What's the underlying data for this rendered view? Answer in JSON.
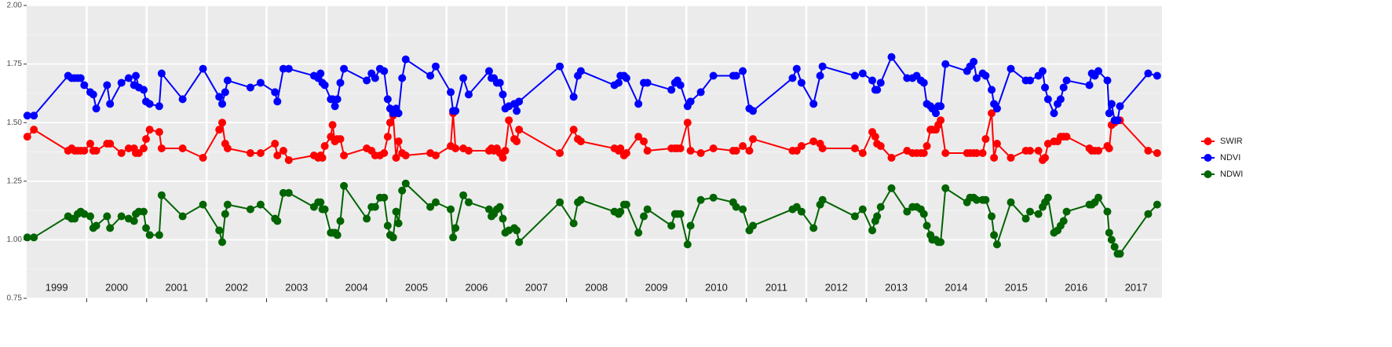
{
  "chart_data": {
    "type": "line",
    "categories": [
      "1999",
      "2000",
      "2001",
      "2002",
      "2003",
      "2004",
      "2005",
      "2006",
      "2007",
      "2008",
      "2009",
      "2010",
      "2011",
      "2012",
      "2013",
      "2014",
      "2015",
      "2016",
      "2017"
    ],
    "x": [
      1999.01,
      1999.12,
      1999.69,
      1999.75,
      1999.8,
      1999.85,
      1999.9,
      1999.96,
      2000.06,
      2000.11,
      2000.16,
      2000.34,
      2000.39,
      2000.58,
      2000.7,
      2000.79,
      2000.82,
      2000.87,
      2000.95,
      2000.99,
      2001.05,
      2001.21,
      2001.25,
      2001.6,
      2001.94,
      2002.21,
      2002.26,
      2002.31,
      2002.35,
      2002.73,
      2002.9,
      2003.14,
      2003.18,
      2003.28,
      2003.37,
      2003.79,
      2003.86,
      2003.9,
      2003.93,
      2003.97,
      2004.07,
      2004.1,
      2004.14,
      2004.18,
      2004.23,
      2004.29,
      2004.67,
      2004.75,
      2004.81,
      2004.89,
      2004.96,
      2005.02,
      2005.06,
      2005.11,
      2005.16,
      2005.2,
      2005.26,
      2005.32,
      2005.73,
      2005.82,
      2006.07,
      2006.11,
      2006.15,
      2006.28,
      2006.37,
      2006.71,
      2006.75,
      2006.79,
      2006.84,
      2006.89,
      2006.94,
      2006.98,
      2007.04,
      2007.13,
      2007.17,
      2007.21,
      2007.89,
      2008.12,
      2008.19,
      2008.24,
      2008.8,
      2008.87,
      2008.9,
      2008.96,
      2009.0,
      2009.2,
      2009.29,
      2009.35,
      2009.75,
      2009.81,
      2009.85,
      2009.9,
      2010.02,
      2010.07,
      2010.24,
      2010.45,
      2010.78,
      2010.83,
      2010.94,
      2011.05,
      2011.11,
      2011.77,
      2011.84,
      2011.92,
      2012.12,
      2012.23,
      2012.27,
      2012.81,
      2012.94,
      2013.1,
      2013.15,
      2013.18,
      2013.24,
      2013.42,
      2013.68,
      2013.77,
      2013.84,
      2013.91,
      2013.96,
      2014.01,
      2014.07,
      2014.1,
      2014.16,
      2014.2,
      2014.24,
      2014.32,
      2014.68,
      2014.73,
      2014.79,
      2014.84,
      2014.94,
      2014.99,
      2015.09,
      2015.13,
      2015.18,
      2015.41,
      2015.66,
      2015.73,
      2015.87,
      2015.94,
      2015.98,
      2016.03,
      2016.13,
      2016.19,
      2016.24,
      2016.29,
      2016.34,
      2016.72,
      2016.76,
      2016.81,
      2016.87,
      2017.02,
      2017.05,
      2017.09,
      2017.14,
      2017.19,
      2017.23,
      2017.7,
      2017.85
    ],
    "series": [
      {
        "name": "SWIR",
        "color": "#ff0000",
        "values": [
          1.44,
          1.47,
          1.38,
          1.39,
          1.38,
          1.38,
          1.38,
          1.38,
          1.41,
          1.38,
          1.38,
          1.41,
          1.41,
          1.37,
          1.39,
          1.39,
          1.37,
          1.37,
          1.39,
          1.43,
          1.47,
          1.46,
          1.39,
          1.39,
          1.35,
          1.47,
          1.5,
          1.41,
          1.39,
          1.37,
          1.37,
          1.41,
          1.36,
          1.38,
          1.34,
          1.36,
          1.35,
          1.36,
          1.35,
          1.4,
          1.44,
          1.49,
          1.42,
          1.43,
          1.43,
          1.36,
          1.39,
          1.38,
          1.36,
          1.36,
          1.37,
          1.44,
          1.5,
          1.53,
          1.35,
          1.42,
          1.37,
          1.36,
          1.37,
          1.36,
          1.4,
          1.54,
          1.39,
          1.39,
          1.38,
          1.38,
          1.39,
          1.38,
          1.39,
          1.37,
          1.35,
          1.38,
          1.51,
          1.43,
          1.42,
          1.47,
          1.37,
          1.47,
          1.43,
          1.42,
          1.39,
          1.38,
          1.39,
          1.36,
          1.37,
          1.44,
          1.42,
          1.38,
          1.39,
          1.39,
          1.39,
          1.39,
          1.5,
          1.38,
          1.37,
          1.39,
          1.38,
          1.38,
          1.4,
          1.38,
          1.43,
          1.38,
          1.38,
          1.4,
          1.42,
          1.41,
          1.39,
          1.39,
          1.37,
          1.46,
          1.44,
          1.41,
          1.4,
          1.35,
          1.38,
          1.37,
          1.37,
          1.37,
          1.37,
          1.4,
          1.47,
          1.47,
          1.47,
          1.49,
          1.51,
          1.37,
          1.37,
          1.37,
          1.37,
          1.37,
          1.37,
          1.43,
          1.54,
          1.35,
          1.41,
          1.35,
          1.38,
          1.38,
          1.38,
          1.34,
          1.35,
          1.41,
          1.42,
          1.42,
          1.44,
          1.44,
          1.44,
          1.39,
          1.38,
          1.38,
          1.38,
          1.4,
          1.39,
          1.49,
          1.5,
          1.51,
          1.51,
          1.38,
          1.37
        ]
      },
      {
        "name": "NDVI",
        "color": "#0000ff",
        "values": [
          1.53,
          1.53,
          1.7,
          1.69,
          1.69,
          1.69,
          1.69,
          1.66,
          1.63,
          1.62,
          1.56,
          1.66,
          1.58,
          1.67,
          1.69,
          1.66,
          1.7,
          1.65,
          1.64,
          1.59,
          1.58,
          1.57,
          1.71,
          1.6,
          1.73,
          1.61,
          1.58,
          1.63,
          1.68,
          1.65,
          1.67,
          1.63,
          1.59,
          1.73,
          1.73,
          1.7,
          1.69,
          1.71,
          1.67,
          1.66,
          1.6,
          1.6,
          1.57,
          1.6,
          1.67,
          1.73,
          1.68,
          1.71,
          1.69,
          1.73,
          1.72,
          1.6,
          1.56,
          1.54,
          1.56,
          1.54,
          1.69,
          1.77,
          1.7,
          1.74,
          1.63,
          1.55,
          1.55,
          1.69,
          1.62,
          1.72,
          1.69,
          1.69,
          1.67,
          1.67,
          1.62,
          1.56,
          1.57,
          1.58,
          1.55,
          1.59,
          1.74,
          1.61,
          1.7,
          1.72,
          1.66,
          1.67,
          1.7,
          1.7,
          1.69,
          1.58,
          1.67,
          1.67,
          1.64,
          1.67,
          1.68,
          1.66,
          1.57,
          1.59,
          1.63,
          1.7,
          1.7,
          1.7,
          1.72,
          1.56,
          1.55,
          1.69,
          1.73,
          1.67,
          1.58,
          1.7,
          1.74,
          1.7,
          1.71,
          1.68,
          1.64,
          1.64,
          1.67,
          1.78,
          1.69,
          1.69,
          1.7,
          1.68,
          1.67,
          1.58,
          1.57,
          1.56,
          1.54,
          1.57,
          1.57,
          1.75,
          1.72,
          1.74,
          1.76,
          1.69,
          1.71,
          1.7,
          1.64,
          1.58,
          1.56,
          1.73,
          1.68,
          1.68,
          1.7,
          1.72,
          1.65,
          1.6,
          1.54,
          1.58,
          1.6,
          1.65,
          1.68,
          1.66,
          1.71,
          1.7,
          1.72,
          1.68,
          1.54,
          1.58,
          1.51,
          1.51,
          1.57,
          1.71,
          1.7
        ]
      },
      {
        "name": "NDWI",
        "color": "#006400",
        "values": [
          1.01,
          1.01,
          1.1,
          1.09,
          1.09,
          1.11,
          1.12,
          1.11,
          1.1,
          1.05,
          1.06,
          1.1,
          1.05,
          1.1,
          1.09,
          1.08,
          1.11,
          1.12,
          1.12,
          1.05,
          1.02,
          1.02,
          1.19,
          1.1,
          1.15,
          1.04,
          0.99,
          1.11,
          1.15,
          1.13,
          1.15,
          1.09,
          1.08,
          1.2,
          1.2,
          1.14,
          1.16,
          1.16,
          1.13,
          1.13,
          1.03,
          1.03,
          1.03,
          1.02,
          1.08,
          1.23,
          1.09,
          1.14,
          1.14,
          1.18,
          1.18,
          1.06,
          1.02,
          1.01,
          1.12,
          1.07,
          1.21,
          1.24,
          1.14,
          1.16,
          1.13,
          1.01,
          1.05,
          1.19,
          1.16,
          1.13,
          1.1,
          1.11,
          1.13,
          1.14,
          1.09,
          1.03,
          1.04,
          1.05,
          1.04,
          0.99,
          1.16,
          1.07,
          1.16,
          1.17,
          1.12,
          1.11,
          1.12,
          1.15,
          1.15,
          1.03,
          1.1,
          1.13,
          1.06,
          1.11,
          1.11,
          1.11,
          0.98,
          1.06,
          1.17,
          1.18,
          1.16,
          1.14,
          1.13,
          1.04,
          1.06,
          1.13,
          1.14,
          1.12,
          1.05,
          1.15,
          1.17,
          1.1,
          1.13,
          1.04,
          1.08,
          1.1,
          1.14,
          1.22,
          1.12,
          1.14,
          1.14,
          1.13,
          1.11,
          1.06,
          1.02,
          1.0,
          1.0,
          0.99,
          0.99,
          1.22,
          1.16,
          1.18,
          1.18,
          1.17,
          1.17,
          1.17,
          1.1,
          1.02,
          0.98,
          1.16,
          1.09,
          1.12,
          1.11,
          1.14,
          1.16,
          1.18,
          1.03,
          1.04,
          1.06,
          1.08,
          1.12,
          1.15,
          1.15,
          1.16,
          1.18,
          1.12,
          1.03,
          1.0,
          0.97,
          0.94,
          0.94,
          1.11,
          1.15
        ]
      }
    ],
    "xlim": [
      1999.0,
      2017.93
    ],
    "xticks": [
      2000,
      2001,
      2002,
      2003,
      2004,
      2005,
      2006,
      2007,
      2008,
      2009,
      2010,
      2011,
      2012,
      2013,
      2014,
      2015,
      2016,
      2017
    ],
    "ylim": [
      0.75,
      2.0
    ],
    "yticks": [
      0.75,
      {
        "value": 1,
        "label": "1.00"
      },
      1.25,
      {
        "value": 1.5,
        "label": "1.50"
      },
      1.75,
      {
        "value": 2,
        "label": "2.00"
      }
    ],
    "grid": true,
    "legend": "right"
  }
}
